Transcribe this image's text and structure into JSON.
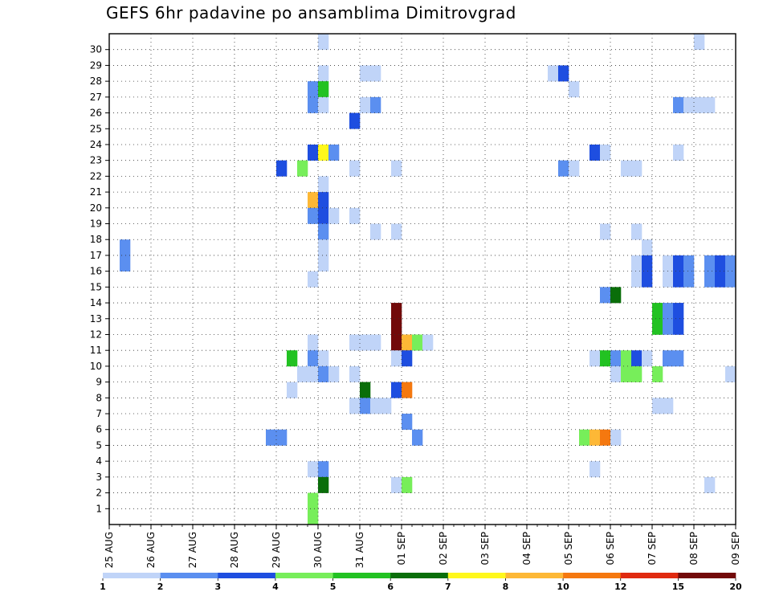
{
  "chart_data": {
    "type": "heatmap",
    "title": "GEFS 6hr padavine po ansamblima Dimitrovgrad",
    "xlabel": "",
    "ylabel": "",
    "x_tick_labels": [
      "25 AUG",
      "26 AUG",
      "27 AUG",
      "28 AUG",
      "29 AUG",
      "30 AUG",
      "31 AUG",
      "01 SEP",
      "02 SEP",
      "03 SEP",
      "04 SEP",
      "05 SEP",
      "06 SEP",
      "07 SEP",
      "08 SEP",
      "09 SEP"
    ],
    "y_tick_labels": [
      "1",
      "2",
      "3",
      "4",
      "5",
      "6",
      "7",
      "8",
      "9",
      "10",
      "11",
      "12",
      "13",
      "14",
      "15",
      "16",
      "17",
      "18",
      "19",
      "20",
      "21",
      "22",
      "23",
      "24",
      "25",
      "26",
      "27",
      "28",
      "29",
      "30"
    ],
    "steps_per_day": 4,
    "grid": true,
    "legend": {
      "placement": "bottom",
      "colors": [
        "#c0d4f8",
        "#5b8ff0",
        "#1e4ee0",
        "#77ee5a",
        "#22c222",
        "#0a6e0a",
        "#fff81c",
        "#fdb836",
        "#f5780f",
        "#e02a10",
        "#720a0a"
      ],
      "labels": [
        "1",
        "2",
        "3",
        "4",
        "5",
        "6",
        "7",
        "8",
        "10",
        "12",
        "15",
        "20"
      ]
    },
    "level_colors": {
      "1": "#c0d4f8",
      "2": "#5b8ff0",
      "3": "#1e4ee0",
      "4": "#77ee5a",
      "5": "#22c222",
      "6": "#0a6e0a",
      "7": "#fff81c",
      "8": "#fdb836",
      "10": "#f5780f",
      "12": "#e02a10",
      "15": "#720a0a"
    },
    "cells": [
      {
        "member": 30,
        "step": 20,
        "level": 1
      },
      {
        "member": 30,
        "step": 56,
        "level": 1
      },
      {
        "member": 28,
        "step": 20,
        "level": 1
      },
      {
        "member": 28,
        "step": 24,
        "level": 1
      },
      {
        "member": 28,
        "step": 25,
        "level": 1
      },
      {
        "member": 28,
        "step": 42,
        "level": 1
      },
      {
        "member": 28,
        "step": 43,
        "level": 3
      },
      {
        "member": 27,
        "step": 19,
        "level": 2
      },
      {
        "member": 27,
        "step": 20,
        "level": 5
      },
      {
        "member": 27,
        "step": 44,
        "level": 1
      },
      {
        "member": 26,
        "step": 19,
        "level": 2
      },
      {
        "member": 26,
        "step": 20,
        "level": 1
      },
      {
        "member": 26,
        "step": 24,
        "level": 1
      },
      {
        "member": 26,
        "step": 25,
        "level": 2
      },
      {
        "member": 26,
        "step": 54,
        "level": 2
      },
      {
        "member": 26,
        "step": 55,
        "level": 1
      },
      {
        "member": 26,
        "step": 56,
        "level": 1
      },
      {
        "member": 26,
        "step": 57,
        "level": 1
      },
      {
        "member": 25,
        "step": 23,
        "level": 3
      },
      {
        "member": 23,
        "step": 19,
        "level": 3
      },
      {
        "member": 23,
        "step": 20,
        "level": 7
      },
      {
        "member": 23,
        "step": 21,
        "level": 2
      },
      {
        "member": 23,
        "step": 46,
        "level": 3
      },
      {
        "member": 23,
        "step": 47,
        "level": 1
      },
      {
        "member": 23,
        "step": 54,
        "level": 1
      },
      {
        "member": 22,
        "step": 16,
        "level": 3
      },
      {
        "member": 22,
        "step": 18,
        "level": 4
      },
      {
        "member": 22,
        "step": 23,
        "level": 1
      },
      {
        "member": 22,
        "step": 27,
        "level": 1
      },
      {
        "member": 22,
        "step": 43,
        "level": 2
      },
      {
        "member": 22,
        "step": 44,
        "level": 1
      },
      {
        "member": 22,
        "step": 49,
        "level": 1
      },
      {
        "member": 22,
        "step": 50,
        "level": 1
      },
      {
        "member": 21,
        "step": 20,
        "level": 1
      },
      {
        "member": 20,
        "step": 19,
        "level": 8
      },
      {
        "member": 20,
        "step": 20,
        "level": 3
      },
      {
        "member": 19,
        "step": 19,
        "level": 2
      },
      {
        "member": 19,
        "step": 20,
        "level": 3
      },
      {
        "member": 19,
        "step": 21,
        "level": 1
      },
      {
        "member": 19,
        "step": 23,
        "level": 1
      },
      {
        "member": 18,
        "step": 20,
        "level": 2
      },
      {
        "member": 18,
        "step": 25,
        "level": 1
      },
      {
        "member": 18,
        "step": 27,
        "level": 1
      },
      {
        "member": 18,
        "step": 47,
        "level": 1
      },
      {
        "member": 18,
        "step": 50,
        "level": 1
      },
      {
        "member": 17,
        "step": 1,
        "level": 2
      },
      {
        "member": 17,
        "step": 20,
        "level": 1
      },
      {
        "member": 17,
        "step": 51,
        "level": 1
      },
      {
        "member": 16,
        "step": 1,
        "level": 2
      },
      {
        "member": 16,
        "step": 20,
        "level": 1
      },
      {
        "member": 16,
        "step": 50,
        "level": 1
      },
      {
        "member": 16,
        "step": 51,
        "level": 3
      },
      {
        "member": 16,
        "step": 53,
        "level": 1
      },
      {
        "member": 16,
        "step": 54,
        "level": 3
      },
      {
        "member": 16,
        "step": 55,
        "level": 2
      },
      {
        "member": 16,
        "step": 57,
        "level": 2
      },
      {
        "member": 16,
        "step": 58,
        "level": 3
      },
      {
        "member": 16,
        "step": 59,
        "level": 2
      },
      {
        "member": 15,
        "step": 19,
        "level": 1
      },
      {
        "member": 15,
        "step": 50,
        "level": 1
      },
      {
        "member": 15,
        "step": 51,
        "level": 3
      },
      {
        "member": 15,
        "step": 53,
        "level": 1
      },
      {
        "member": 15,
        "step": 54,
        "level": 3
      },
      {
        "member": 15,
        "step": 55,
        "level": 2
      },
      {
        "member": 15,
        "step": 57,
        "level": 2
      },
      {
        "member": 15,
        "step": 58,
        "level": 3
      },
      {
        "member": 15,
        "step": 59,
        "level": 2
      },
      {
        "member": 14,
        "step": 47,
        "level": 2
      },
      {
        "member": 14,
        "step": 48,
        "level": 6
      },
      {
        "member": 13,
        "step": 27,
        "level": 15
      },
      {
        "member": 13,
        "step": 52,
        "level": 5
      },
      {
        "member": 13,
        "step": 53,
        "level": 2
      },
      {
        "member": 13,
        "step": 54,
        "level": 3
      },
      {
        "member": 12,
        "step": 27,
        "level": 15
      },
      {
        "member": 12,
        "step": 52,
        "level": 5
      },
      {
        "member": 12,
        "step": 53,
        "level": 2
      },
      {
        "member": 12,
        "step": 54,
        "level": 3
      },
      {
        "member": 11,
        "step": 19,
        "level": 1
      },
      {
        "member": 11,
        "step": 23,
        "level": 1
      },
      {
        "member": 11,
        "step": 24,
        "level": 1
      },
      {
        "member": 11,
        "step": 25,
        "level": 1
      },
      {
        "member": 11,
        "step": 27,
        "level": 15
      },
      {
        "member": 11,
        "step": 28,
        "level": 8
      },
      {
        "member": 11,
        "step": 29,
        "level": 4
      },
      {
        "member": 11,
        "step": 30,
        "level": 1
      },
      {
        "member": 10,
        "step": 17,
        "level": 5
      },
      {
        "member": 10,
        "step": 19,
        "level": 2
      },
      {
        "member": 10,
        "step": 20,
        "level": 1
      },
      {
        "member": 10,
        "step": 27,
        "level": 1
      },
      {
        "member": 10,
        "step": 28,
        "level": 3
      },
      {
        "member": 10,
        "step": 46,
        "level": 1
      },
      {
        "member": 10,
        "step": 47,
        "level": 5
      },
      {
        "member": 10,
        "step": 48,
        "level": 2
      },
      {
        "member": 10,
        "step": 49,
        "level": 4
      },
      {
        "member": 10,
        "step": 50,
        "level": 3
      },
      {
        "member": 10,
        "step": 51,
        "level": 1
      },
      {
        "member": 10,
        "step": 53,
        "level": 2
      },
      {
        "member": 10,
        "step": 54,
        "level": 2
      },
      {
        "member": 9,
        "step": 18,
        "level": 1
      },
      {
        "member": 9,
        "step": 19,
        "level": 1
      },
      {
        "member": 9,
        "step": 20,
        "level": 2
      },
      {
        "member": 9,
        "step": 21,
        "level": 1
      },
      {
        "member": 9,
        "step": 23,
        "level": 1
      },
      {
        "member": 9,
        "step": 48,
        "level": 1
      },
      {
        "member": 9,
        "step": 49,
        "level": 4
      },
      {
        "member": 9,
        "step": 50,
        "level": 4
      },
      {
        "member": 9,
        "step": 52,
        "level": 4
      },
      {
        "member": 9,
        "step": 59,
        "level": 1
      },
      {
        "member": 8,
        "step": 17,
        "level": 1
      },
      {
        "member": 8,
        "step": 24,
        "level": 6
      },
      {
        "member": 8,
        "step": 27,
        "level": 3
      },
      {
        "member": 8,
        "step": 28,
        "level": 10
      },
      {
        "member": 7,
        "step": 23,
        "level": 1
      },
      {
        "member": 7,
        "step": 24,
        "level": 2
      },
      {
        "member": 7,
        "step": 25,
        "level": 1
      },
      {
        "member": 7,
        "step": 26,
        "level": 1
      },
      {
        "member": 7,
        "step": 52,
        "level": 1
      },
      {
        "member": 7,
        "step": 53,
        "level": 1
      },
      {
        "member": 6,
        "step": 28,
        "level": 2
      },
      {
        "member": 5,
        "step": 15,
        "level": 2
      },
      {
        "member": 5,
        "step": 16,
        "level": 2
      },
      {
        "member": 5,
        "step": 29,
        "level": 2
      },
      {
        "member": 5,
        "step": 45,
        "level": 4
      },
      {
        "member": 5,
        "step": 46,
        "level": 8
      },
      {
        "member": 5,
        "step": 47,
        "level": 10
      },
      {
        "member": 5,
        "step": 48,
        "level": 1
      },
      {
        "member": 3,
        "step": 19,
        "level": 1
      },
      {
        "member": 3,
        "step": 20,
        "level": 2
      },
      {
        "member": 3,
        "step": 46,
        "level": 1
      },
      {
        "member": 2,
        "step": 20,
        "level": 6
      },
      {
        "member": 2,
        "step": 27,
        "level": 1
      },
      {
        "member": 2,
        "step": 28,
        "level": 4
      },
      {
        "member": 2,
        "step": 57,
        "level": 1
      },
      {
        "member": 1,
        "step": 19,
        "level": 4
      },
      {
        "member": 0,
        "step": 19,
        "level": 4
      }
    ]
  }
}
